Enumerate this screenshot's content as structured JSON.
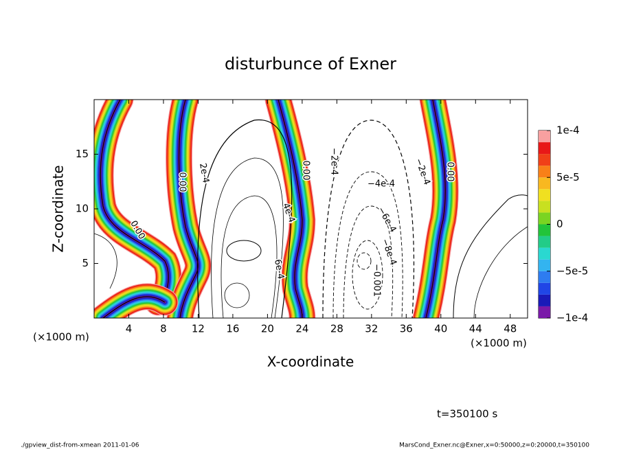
{
  "chart_data": {
    "type": "contour",
    "title": "disturbunce of Exner",
    "xlabel": "X-coordinate",
    "ylabel": "Z-coordinate",
    "x_unit": "(×1000 m)",
    "x_unit_right": "(×1000 m)",
    "time_label": "t=350100 s",
    "footer_left": "./gpview_dist-from-xmean  2011-01-06",
    "footer_right": "MarsCond_Exner.nc@Exner,x=0:50000,z=0:20000,t=350100",
    "xlim": [
      0,
      50
    ],
    "ylim": [
      0,
      20
    ],
    "xticks": [
      4,
      8,
      12,
      16,
      20,
      24,
      28,
      32,
      36,
      40,
      44,
      48
    ],
    "yticks": [
      5,
      10,
      15
    ],
    "colorbar": {
      "lim": [
        -0.0001,
        0.0001
      ],
      "ticks": [
        {
          "value": -0.0001,
          "label": "−1e-4"
        },
        {
          "value": -5e-05,
          "label": "−5e-5"
        },
        0,
        {
          "value": 5e-05,
          "label": "5e-5"
        },
        {
          "value": 0.0001,
          "label": "1e-4"
        }
      ],
      "levels": [
        -0.0001,
        -8.75e-05,
        -7.5e-05,
        -6.25e-05,
        -5e-05,
        -3.75e-05,
        -2.5e-05,
        -1.25e-05,
        0,
        1.25e-05,
        2.5e-05,
        3.75e-05,
        5e-05,
        6.25e-05,
        7.5e-05,
        8.75e-05,
        0.0001
      ],
      "colors": [
        "#7a1aa8",
        "#1a1ab8",
        "#2046e6",
        "#2e7cf0",
        "#33b4f0",
        "#2ad8d0",
        "#22cc88",
        "#22c43a",
        "#7ad422",
        "#c8e020",
        "#f0e020",
        "#f8b820",
        "#f88018",
        "#f04018",
        "#e81818",
        "#f8a0a0"
      ]
    },
    "contour_labels": [
      "0.00",
      "0.00",
      "0.00",
      "0.00",
      "2e-4",
      "4e-4",
      "6e-4",
      "−2e-4",
      "−4e-4",
      "−6e-4",
      "−8e-4",
      "−0.001",
      "−2e-4"
    ]
  }
}
